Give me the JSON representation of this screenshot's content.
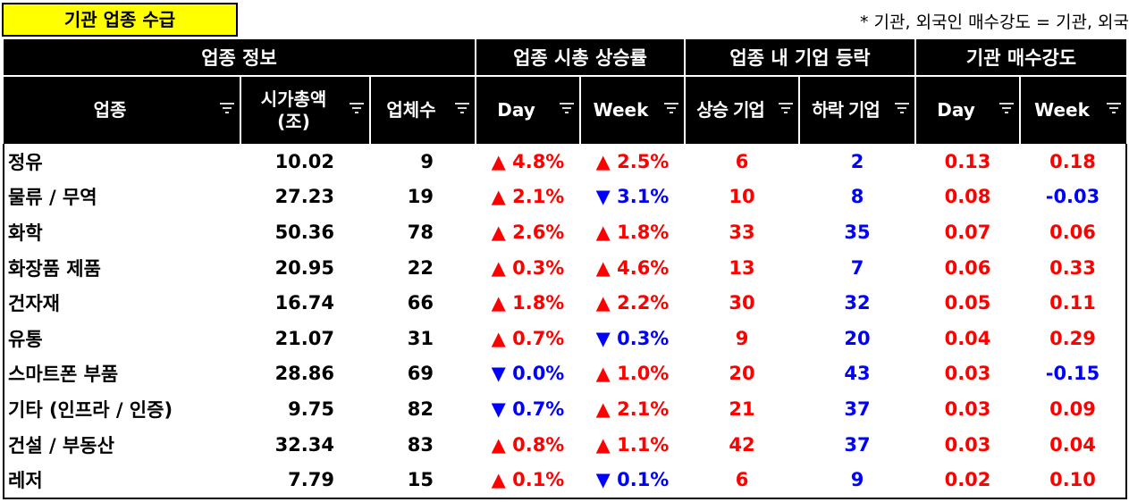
{
  "header": {
    "title": "기관 업종 수급",
    "note": "* 기관, 외국인 매수강도 = 기관, 외국"
  },
  "colors": {
    "up": "#ff0000",
    "down": "#0000ff",
    "header_bg": "#000000",
    "title_bg": "#ffff00"
  },
  "groups": {
    "info": "업종 정보",
    "cap_change": "업종 시총 상승률",
    "updown": "업종 내 기업 등락",
    "strength": "기관 매수강도"
  },
  "columns": {
    "sector": "업종",
    "cap": "시가총액 (조)",
    "count": "업체수",
    "day": "Day",
    "week": "Week",
    "rise": "상승 기업",
    "fall": "하락 기업",
    "s_day": "Day",
    "s_week": "Week"
  },
  "icons": {
    "filter": "filter-icon",
    "up": "triangle-up-icon",
    "down": "triangle-down-icon"
  },
  "rows": [
    {
      "sector": "정유",
      "cap": "10.02",
      "count": "9",
      "day": "▲ 4.8%",
      "day_dir": "up",
      "week": "▲ 2.5%",
      "week_dir": "up",
      "rise": "6",
      "fall": "2",
      "s_day": "0.13",
      "s_week": "0.18",
      "s_week_dir": "up"
    },
    {
      "sector": "물류 / 무역",
      "cap": "27.23",
      "count": "19",
      "day": "▲ 2.1%",
      "day_dir": "up",
      "week": "▼ 3.1%",
      "week_dir": "down",
      "rise": "10",
      "fall": "8",
      "s_day": "0.08",
      "s_week": "-0.03",
      "s_week_dir": "down"
    },
    {
      "sector": "화학",
      "cap": "50.36",
      "count": "78",
      "day": "▲ 2.6%",
      "day_dir": "up",
      "week": "▲ 1.8%",
      "week_dir": "up",
      "rise": "33",
      "fall": "35",
      "s_day": "0.07",
      "s_week": "0.06",
      "s_week_dir": "up"
    },
    {
      "sector": "화장품 제품",
      "cap": "20.95",
      "count": "22",
      "day": "▲ 0.3%",
      "day_dir": "up",
      "week": "▲ 4.6%",
      "week_dir": "up",
      "rise": "13",
      "fall": "7",
      "s_day": "0.06",
      "s_week": "0.33",
      "s_week_dir": "up"
    },
    {
      "sector": "건자재",
      "cap": "16.74",
      "count": "66",
      "day": "▲ 1.8%",
      "day_dir": "up",
      "week": "▲ 2.2%",
      "week_dir": "up",
      "rise": "30",
      "fall": "32",
      "s_day": "0.05",
      "s_week": "0.11",
      "s_week_dir": "up"
    },
    {
      "sector": "유통",
      "cap": "21.07",
      "count": "31",
      "day": "▲ 0.7%",
      "day_dir": "up",
      "week": "▼ 0.3%",
      "week_dir": "down",
      "rise": "9",
      "fall": "20",
      "s_day": "0.04",
      "s_week": "0.29",
      "s_week_dir": "up"
    },
    {
      "sector": "스마트폰 부품",
      "cap": "28.86",
      "count": "69",
      "day": "▼ 0.0%",
      "day_dir": "down",
      "week": "▲ 1.0%",
      "week_dir": "up",
      "rise": "20",
      "fall": "43",
      "s_day": "0.03",
      "s_week": "-0.15",
      "s_week_dir": "down"
    },
    {
      "sector": "기타 (인프라 / 인증)",
      "cap": "9.75",
      "count": "82",
      "day": "▼ 0.7%",
      "day_dir": "down",
      "week": "▲ 2.1%",
      "week_dir": "up",
      "rise": "21",
      "fall": "37",
      "s_day": "0.03",
      "s_week": "0.09",
      "s_week_dir": "up"
    },
    {
      "sector": "건설 / 부동산",
      "cap": "32.34",
      "count": "83",
      "day": "▲ 0.8%",
      "day_dir": "up",
      "week": "▲ 1.1%",
      "week_dir": "up",
      "rise": "42",
      "fall": "37",
      "s_day": "0.03",
      "s_week": "0.04",
      "s_week_dir": "up"
    },
    {
      "sector": "레저",
      "cap": "7.79",
      "count": "15",
      "day": "▲ 0.1%",
      "day_dir": "up",
      "week": "▼ 0.1%",
      "week_dir": "down",
      "rise": "6",
      "fall": "9",
      "s_day": "0.02",
      "s_week": "0.10",
      "s_week_dir": "up"
    }
  ]
}
